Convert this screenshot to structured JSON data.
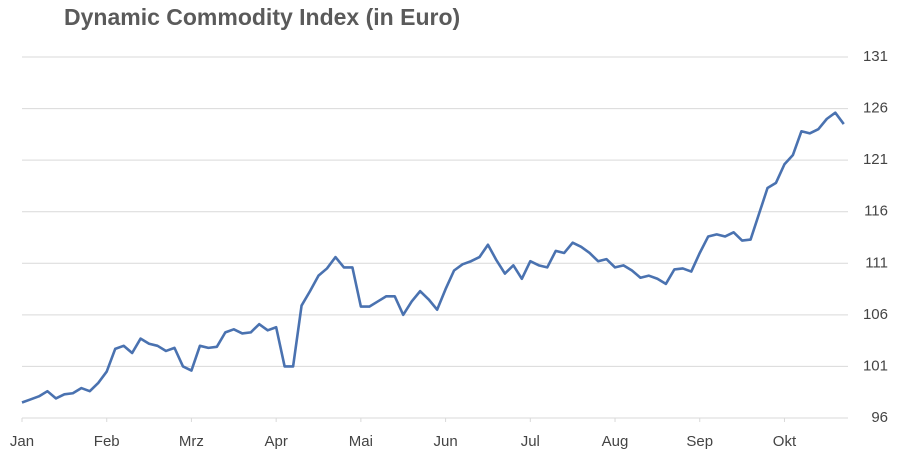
{
  "chart_data": {
    "type": "line",
    "title": "Dynamic Commodity Index (in Euro)",
    "series": [
      {
        "name": "Dynamic Commodity Index",
        "color": "#4a72b0",
        "values": [
          97.5,
          97.8,
          98.1,
          98.6,
          97.9,
          98.3,
          98.4,
          98.9,
          98.6,
          99.4,
          100.5,
          102.7,
          103.0,
          102.3,
          103.7,
          103.2,
          103.0,
          102.5,
          102.8,
          101.0,
          100.6,
          103.0,
          102.8,
          102.9,
          104.3,
          104.6,
          104.2,
          104.3,
          105.1,
          104.5,
          104.8,
          101.0,
          101.0,
          106.9,
          108.3,
          109.8,
          110.5,
          111.6,
          110.6,
          110.6,
          106.8,
          106.8,
          107.3,
          107.8,
          107.8,
          106.0,
          107.3,
          108.3,
          107.5,
          106.5,
          108.5,
          110.3,
          110.9,
          111.2,
          111.6,
          112.8,
          111.3,
          110.0,
          110.8,
          109.5,
          111.2,
          110.8,
          110.6,
          112.2,
          112.0,
          113.0,
          112.6,
          112.0,
          111.2,
          111.4,
          110.6,
          110.8,
          110.3,
          109.6,
          109.8,
          109.5,
          109.0,
          110.4,
          110.5,
          110.2,
          112.0,
          113.6,
          113.8,
          113.6,
          114.0,
          113.2,
          113.3,
          115.8,
          118.3,
          118.8,
          120.6,
          121.5,
          123.8,
          123.6,
          124.0,
          125.0,
          125.6,
          124.5
        ]
      }
    ],
    "xlim": [
      0,
      97.5
    ],
    "xticks": [
      {
        "value": 0,
        "label": "Jan"
      },
      {
        "value": 10,
        "label": "Feb"
      },
      {
        "value": 20,
        "label": "Mrz"
      },
      {
        "value": 30,
        "label": "Apr"
      },
      {
        "value": 40,
        "label": "Mai"
      },
      {
        "value": 50,
        "label": "Jun"
      },
      {
        "value": 60,
        "label": "Jul"
      },
      {
        "value": 70,
        "label": "Aug"
      },
      {
        "value": 80,
        "label": "Sep"
      },
      {
        "value": 90,
        "label": "Okt"
      }
    ],
    "ylim": [
      96,
      131
    ],
    "yticks": [
      96,
      101,
      106,
      111,
      116,
      121,
      126,
      131
    ],
    "grid": true,
    "y_axis_side": "right"
  }
}
